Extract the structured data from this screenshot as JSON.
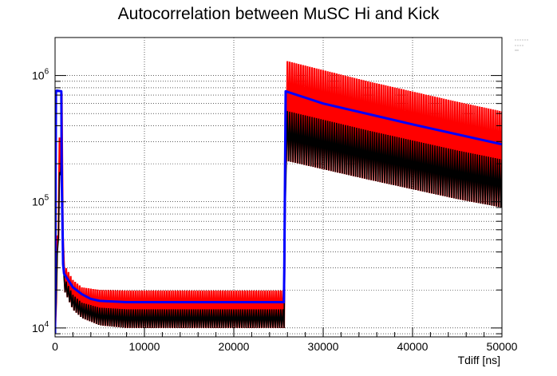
{
  "chart_data": {
    "type": "line",
    "title": "Autocorrelation between MuSC Hi and Kick",
    "xlabel": "Tdiff [ns]",
    "ylabel": "",
    "xlim": [
      0,
      50000
    ],
    "ylim": [
      8500,
      2000000
    ],
    "y_scale": "log",
    "grid": true,
    "x_ticks": [
      0,
      10000,
      20000,
      30000,
      40000,
      50000
    ],
    "x_tick_labels": [
      "0",
      "10000",
      "20000",
      "30000",
      "40000",
      "50000"
    ],
    "y_ticks": [
      10000,
      100000,
      1000000
    ],
    "y_tick_base": "10",
    "y_tick_exponents": [
      "4",
      "5",
      "6"
    ],
    "colors": {
      "raw_hi": "#ff0000",
      "raw_lo": "#000000",
      "fit": "#0000ff"
    },
    "series": [
      {
        "style": "raw",
        "x": [
          0,
          700,
          1000,
          2000,
          3000,
          5000,
          8000,
          15000,
          25700,
          25800,
          26000,
          35000,
          45000,
          50000
        ],
        "hi": [
          9000,
          1350000,
          32000,
          24000,
          21000,
          20000,
          19800,
          19800,
          19800,
          1300000,
          1300000,
          900000,
          620000,
          520000
        ],
        "lo": [
          9000,
          230000,
          20000,
          14000,
          12000,
          10500,
          10000,
          10000,
          10000,
          220000,
          210000,
          150000,
          105000,
          90000
        ]
      },
      {
        "style": "fit",
        "x": [
          0,
          100,
          200,
          700,
          750,
          900,
          1000,
          2000,
          3000,
          4000,
          5000,
          8000,
          15000,
          25600,
          25650,
          25800,
          30000,
          40000,
          50000
        ],
        "y": [
          9000,
          750000,
          760000,
          750000,
          150000,
          32000,
          27000,
          21000,
          18500,
          17000,
          16400,
          16000,
          16000,
          16000,
          30000,
          750000,
          600000,
          410000,
          285000
        ]
      }
    ]
  }
}
